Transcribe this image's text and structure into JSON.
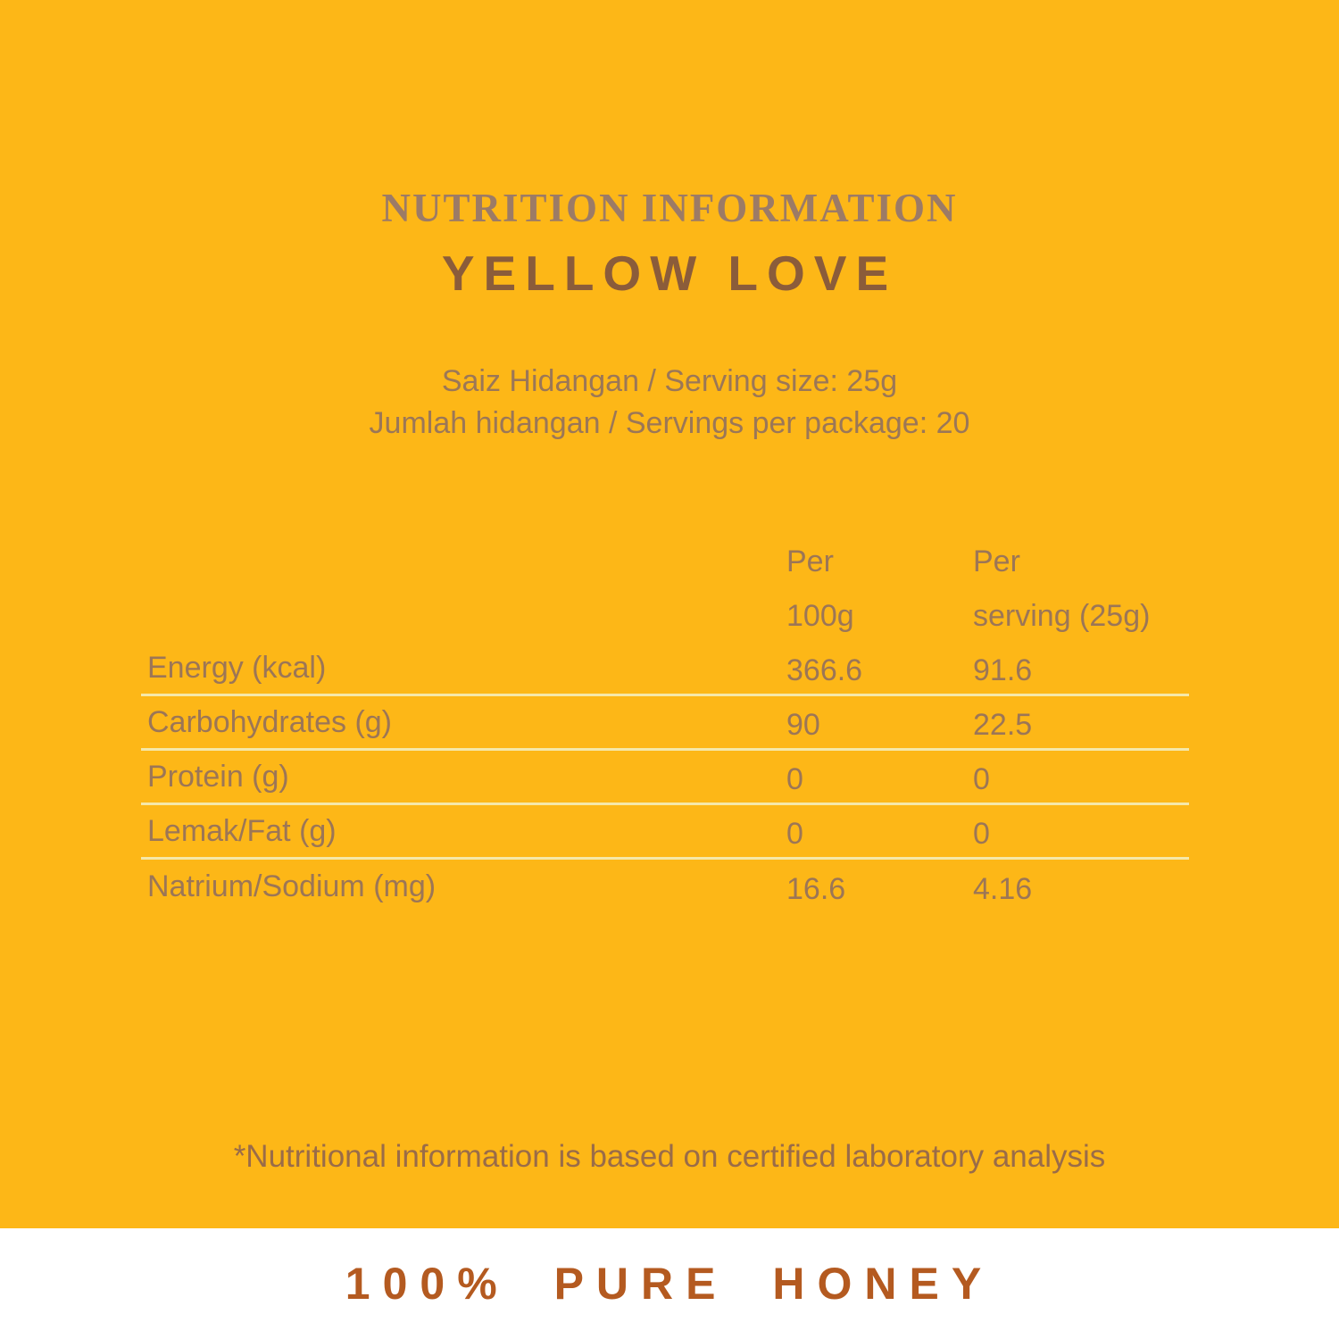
{
  "header": {
    "eyebrow": "NUTRITION INFORMATION",
    "title": "YELLOW LOVE"
  },
  "serving": {
    "line1": "Saiz Hidangan / Serving size: 25g",
    "line2": "Jumlah hidangan / Servings per package: 20"
  },
  "table": {
    "columns": [
      {
        "line1": "Per",
        "line2": "100g"
      },
      {
        "line1": "Per",
        "line2": "serving (25g)"
      }
    ],
    "rows": [
      {
        "label": "Energy (kcal)",
        "per_100g": "366.6",
        "per_serving": "91.6"
      },
      {
        "label": "Carbohydrates (g)",
        "per_100g": "90",
        "per_serving": "22.5"
      },
      {
        "label": "Protein (g)",
        "per_100g": "0",
        "per_serving": "0"
      },
      {
        "label": "Lemak/Fat (g)",
        "per_100g": "0",
        "per_serving": "0"
      },
      {
        "label": "Natrium/Sodium (mg)",
        "per_100g": "16.6",
        "per_serving": "4.16"
      }
    ]
  },
  "footnote": "*Nutritional information is based on certified laboratory analysis",
  "footer": {
    "slogan": "100% PURE HONEY"
  },
  "colors": {
    "background": "#FDB717",
    "eyebrow_text": "#9C7B66",
    "title_text": "#8B5C3A",
    "body_text": "#9C7656",
    "separator_line": "#F5E8A9",
    "footnote_text": "#9A6C48",
    "footer_background": "#FFFFFF",
    "footer_text": "#B45A20"
  }
}
